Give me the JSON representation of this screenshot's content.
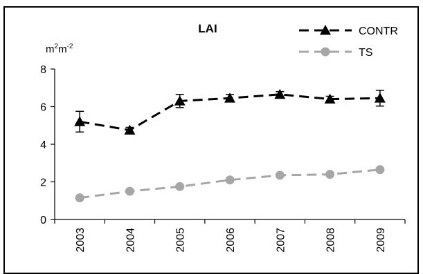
{
  "chart_data": {
    "type": "line",
    "title": "LAI",
    "ylabel": "m2m-2",
    "ylabel_parts": {
      "base1": "m",
      "sup1": "2",
      "base2": "m",
      "sup2": "-2"
    },
    "x": [
      "2003",
      "2004",
      "2005",
      "2006",
      "2007",
      "2008",
      "2009"
    ],
    "yticks": [
      "0",
      "2",
      "4",
      "6",
      "8"
    ],
    "ylim": [
      0,
      8
    ],
    "grid": false,
    "legend_position": "top-right",
    "series": [
      {
        "name": "CONTR",
        "values": [
          5.2,
          4.75,
          6.3,
          6.45,
          6.65,
          6.4,
          6.45
        ],
        "error": [
          0.55,
          0.15,
          0.35,
          0.2,
          0.15,
          0.15,
          0.42
        ],
        "color": "#000000",
        "marker": "triangle",
        "line": "dashed"
      },
      {
        "name": "TS",
        "values": [
          1.15,
          1.5,
          1.75,
          2.1,
          2.35,
          2.4,
          2.65
        ],
        "color": "#a6a6a6",
        "marker": "circle",
        "line": "dashed"
      }
    ]
  }
}
